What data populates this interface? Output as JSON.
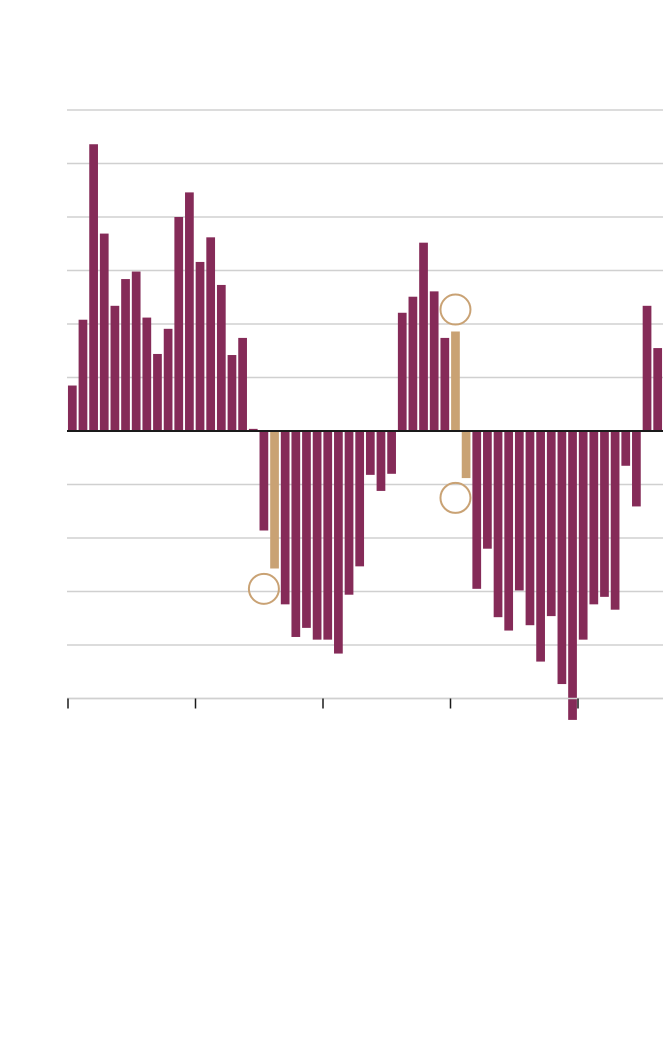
{
  "chart_data": {
    "type": "bar",
    "title": "",
    "xlabel": "",
    "ylabel": "",
    "ylim": [
      -5,
      6
    ],
    "gridlines": [
      -5,
      -4,
      -3,
      -2,
      -1,
      0,
      1,
      2,
      3,
      4,
      5,
      6
    ],
    "grid": true,
    "x_ticks_count": 5,
    "tick_labels_visible": false,
    "colors": {
      "default": "#852b58",
      "highlight": "#c9a274",
      "grid": "#d0d0d0",
      "axis": "#1a1a1a"
    },
    "values": [
      0.85,
      2.08,
      5.36,
      3.69,
      2.34,
      2.84,
      2.98,
      2.12,
      1.44,
      1.91,
      4.0,
      4.46,
      3.16,
      3.62,
      2.73,
      1.42,
      1.74,
      0.04,
      -1.86,
      -2.57,
      -3.24,
      -3.85,
      -3.68,
      -3.9,
      -3.9,
      -4.16,
      -3.06,
      -2.53,
      -0.82,
      -1.12,
      -0.8,
      2.21,
      2.51,
      3.52,
      2.61,
      1.74,
      1.86,
      -0.88,
      -2.95,
      -2.2,
      -3.48,
      -3.73,
      -2.98,
      -3.63,
      -4.31,
      -3.46,
      -4.73,
      -5.4,
      -3.9,
      -3.24,
      -3.1,
      -3.34,
      -0.65,
      -1.41,
      2.34,
      1.55
    ],
    "highlighted_indices": [
      19,
      36,
      37
    ],
    "annotations": [
      {
        "type": "circle",
        "bar_index": 18,
        "value": -2.95
      },
      {
        "type": "circle",
        "bar_index": 36,
        "value": 2.27
      },
      {
        "type": "circle",
        "bar_index": 36,
        "value": -1.25
      }
    ]
  }
}
